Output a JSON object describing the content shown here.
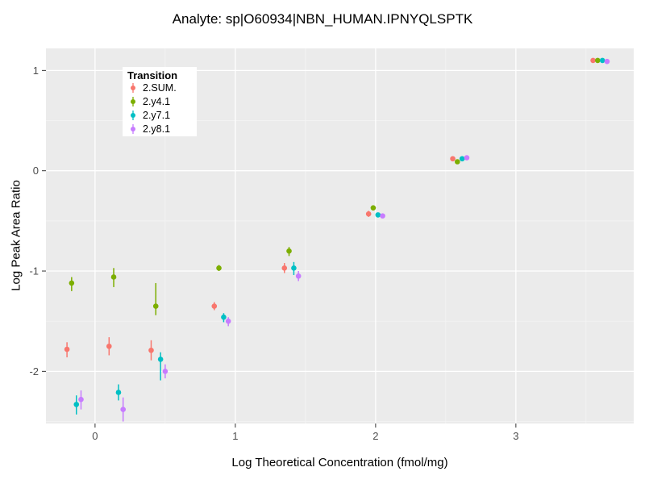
{
  "chart_data": {
    "type": "scatter",
    "title": "Analyte: sp|O60934|NBN_HUMAN.IPNYQLSPTK",
    "xlabel": "Log Theoretical Concentration (fmol/mg)",
    "ylabel": "Log Peak Area Ratio",
    "xlim": [
      -0.35,
      3.84
    ],
    "ylim": [
      -2.52,
      1.22
    ],
    "x_ticks": [
      0,
      1,
      2,
      3
    ],
    "y_ticks": [
      -2,
      -1,
      0,
      1
    ],
    "x_minor": [
      0.5,
      1.5,
      2.5,
      3.5
    ],
    "y_minor": [
      -2.5,
      -1.5,
      -0.5,
      0.5
    ],
    "grid": true,
    "panel_color": "#EBEBEB",
    "grid_major_color": "#FFFFFF",
    "grid_minor_color": "#F5F5F5",
    "tick_label_color": "#4D4D4D",
    "legend_title": "Transition",
    "legend_position": "inside-top-left",
    "series": [
      {
        "name": "2.SUM.",
        "color": "#F8766D",
        "dodge": -0.05,
        "points": [
          {
            "x": -0.15,
            "y": -1.78,
            "lo": -1.86,
            "hi": -1.71
          },
          {
            "x": 0.15,
            "y": -1.75,
            "lo": -1.84,
            "hi": -1.66
          },
          {
            "x": 0.45,
            "y": -1.79,
            "lo": -1.89,
            "hi": -1.69
          },
          {
            "x": 0.9,
            "y": -1.35,
            "lo": -1.39,
            "hi": -1.31
          },
          {
            "x": 1.4,
            "y": -0.97,
            "lo": -1.02,
            "hi": -0.92
          },
          {
            "x": 2.0,
            "y": -0.43,
            "lo": -0.46,
            "hi": -0.4
          },
          {
            "x": 2.6,
            "y": 0.12,
            "lo": 0.1,
            "hi": 0.14
          },
          {
            "x": 3.6,
            "y": 1.1,
            "lo": 1.08,
            "hi": 1.12
          }
        ]
      },
      {
        "name": "2.y4.1",
        "color": "#7CAE00",
        "dodge": -0.017,
        "points": [
          {
            "x": -0.15,
            "y": -1.12,
            "lo": -1.2,
            "hi": -1.06
          },
          {
            "x": 0.15,
            "y": -1.06,
            "lo": -1.16,
            "hi": -0.97
          },
          {
            "x": 0.45,
            "y": -1.35,
            "lo": -1.44,
            "hi": -1.12
          },
          {
            "x": 0.9,
            "y": -0.97,
            "lo": -1.0,
            "hi": -0.94
          },
          {
            "x": 1.4,
            "y": -0.8,
            "lo": -0.85,
            "hi": -0.76
          },
          {
            "x": 2.0,
            "y": -0.37,
            "lo": -0.39,
            "hi": -0.35
          },
          {
            "x": 2.6,
            "y": 0.09,
            "lo": 0.07,
            "hi": 0.11
          },
          {
            "x": 3.6,
            "y": 1.1,
            "lo": 1.09,
            "hi": 1.12
          }
        ]
      },
      {
        "name": "2.y7.1",
        "color": "#00BFC4",
        "dodge": 0.017,
        "points": [
          {
            "x": -0.15,
            "y": -2.33,
            "lo": -2.43,
            "hi": -2.24
          },
          {
            "x": 0.15,
            "y": -2.21,
            "lo": -2.29,
            "hi": -2.13
          },
          {
            "x": 0.45,
            "y": -1.88,
            "lo": -2.09,
            "hi": -1.81
          },
          {
            "x": 0.9,
            "y": -1.46,
            "lo": -1.51,
            "hi": -1.42
          },
          {
            "x": 1.4,
            "y": -0.97,
            "lo": -1.04,
            "hi": -0.91
          },
          {
            "x": 2.0,
            "y": -0.44,
            "lo": -0.46,
            "hi": -0.42
          },
          {
            "x": 2.6,
            "y": 0.12,
            "lo": 0.1,
            "hi": 0.13
          },
          {
            "x": 3.6,
            "y": 1.1,
            "lo": 1.09,
            "hi": 1.11
          }
        ]
      },
      {
        "name": "2.y8.1",
        "color": "#C77CFF",
        "dodge": 0.05,
        "points": [
          {
            "x": -0.15,
            "y": -2.28,
            "lo": -2.38,
            "hi": -2.19
          },
          {
            "x": 0.15,
            "y": -2.38,
            "lo": -2.5,
            "hi": -2.26
          },
          {
            "x": 0.45,
            "y": -2.0,
            "lo": -2.07,
            "hi": -1.93
          },
          {
            "x": 0.9,
            "y": -1.5,
            "lo": -1.55,
            "hi": -1.46
          },
          {
            "x": 1.4,
            "y": -1.05,
            "lo": -1.1,
            "hi": -1.0
          },
          {
            "x": 2.0,
            "y": -0.45,
            "lo": -0.47,
            "hi": -0.43
          },
          {
            "x": 2.6,
            "y": 0.13,
            "lo": 0.11,
            "hi": 0.15
          },
          {
            "x": 3.6,
            "y": 1.09,
            "lo": 1.07,
            "hi": 1.1
          }
        ]
      }
    ]
  }
}
